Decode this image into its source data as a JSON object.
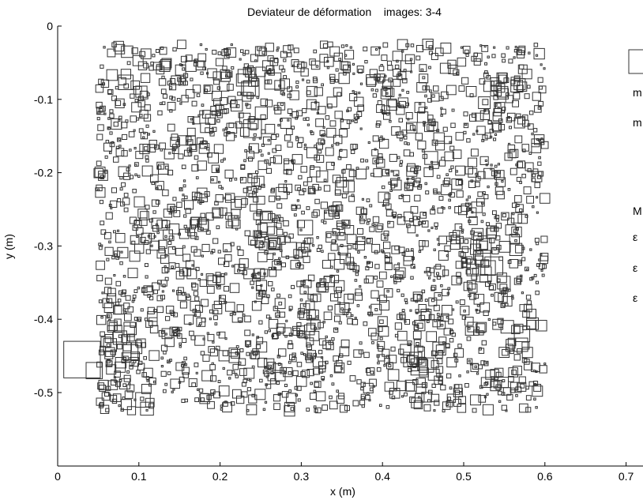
{
  "chart_data": {
    "type": "scatter",
    "title": "Deviateur de déformation    images: 3-4",
    "xlabel": "x (m)",
    "ylabel": "y (m)",
    "xlim": [
      0,
      0.72
    ],
    "ylim": [
      -0.6,
      0
    ],
    "x_ticks": [
      0,
      0.1,
      0.2,
      0.3,
      0.4,
      0.5,
      0.6,
      0.7
    ],
    "y_ticks": [
      0,
      -0.1,
      -0.2,
      -0.3,
      -0.4,
      -0.5
    ],
    "x_tick_labels": [
      "0",
      "0.1",
      "0.2",
      "0.3",
      "0.4",
      "0.5",
      "0.6",
      "0.7"
    ],
    "y_tick_labels": [
      "0",
      "-0.1",
      "-0.2",
      "-0.3",
      "-0.4",
      "-0.5"
    ],
    "grid": false,
    "marker": "square",
    "marker_color": "#333333",
    "note": "marker size proportional to strain deviator magnitude",
    "field": {
      "x_range": [
        0.05,
        0.6
      ],
      "y_range": [
        -0.525,
        -0.025
      ],
      "approx_points": 2600,
      "seed": 1234
    },
    "points": [
      {
        "x": 0.03,
        "y": -0.455,
        "s": 0.045
      },
      {
        "x": 0.045,
        "y": -0.47,
        "s": 0.02
      },
      {
        "x": 0.105,
        "y": -0.51,
        "s": 0.018
      },
      {
        "x": 0.11,
        "y": -0.522,
        "s": 0.016
      },
      {
        "x": 0.24,
        "y": -0.14,
        "s": 0.022
      },
      {
        "x": 0.265,
        "y": -0.075,
        "s": 0.02
      },
      {
        "x": 0.285,
        "y": -0.305,
        "s": 0.018
      },
      {
        "x": 0.305,
        "y": -0.275,
        "s": 0.018
      },
      {
        "x": 0.35,
        "y": -0.22,
        "s": 0.016
      },
      {
        "x": 0.435,
        "y": -0.455,
        "s": 0.018
      },
      {
        "x": 0.445,
        "y": -0.465,
        "s": 0.02
      },
      {
        "x": 0.47,
        "y": -0.44,
        "s": 0.016
      },
      {
        "x": 0.53,
        "y": -0.33,
        "s": 0.018
      },
      {
        "x": 0.525,
        "y": -0.3,
        "s": 0.018
      },
      {
        "x": 0.46,
        "y": -0.18,
        "s": 0.016
      }
    ],
    "clusters": [
      {
        "cx": 0.08,
        "cy": -0.44,
        "r": 0.04
      },
      {
        "cx": 0.23,
        "cy": -0.1,
        "r": 0.05
      },
      {
        "cx": 0.25,
        "cy": -0.26,
        "r": 0.05
      },
      {
        "cx": 0.33,
        "cy": -0.21,
        "r": 0.04
      },
      {
        "cx": 0.45,
        "cy": -0.46,
        "r": 0.05
      },
      {
        "cx": 0.53,
        "cy": -0.32,
        "r": 0.05
      },
      {
        "cx": 0.09,
        "cy": -0.07,
        "r": 0.04
      },
      {
        "cx": 0.55,
        "cy": -0.08,
        "r": 0.04
      },
      {
        "cx": 0.57,
        "cy": -0.42,
        "r": 0.04
      }
    ],
    "legend": {
      "placement": "right (clipped)",
      "entries": [
        "m",
        "m",
        "M",
        "ε",
        "ε",
        "ε"
      ]
    }
  }
}
